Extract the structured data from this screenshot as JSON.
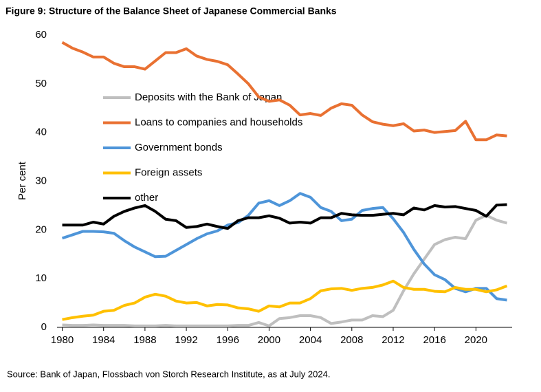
{
  "chart_data": {
    "type": "line",
    "title": "Figure 9: Structure of the Balance Sheet of Japanese Commercial Banks",
    "ylabel": "Per cent",
    "source": "Source: Bank of Japan, Flossbach von Storch Research Institute, as at July 2024.",
    "x": [
      1980,
      1981,
      1982,
      1983,
      1984,
      1985,
      1986,
      1987,
      1988,
      1989,
      1990,
      1991,
      1992,
      1993,
      1994,
      1995,
      1996,
      1997,
      1998,
      1999,
      2000,
      2001,
      2002,
      2003,
      2004,
      2005,
      2006,
      2007,
      2008,
      2009,
      2010,
      2011,
      2012,
      2013,
      2014,
      2015,
      2016,
      2017,
      2018,
      2019,
      2020,
      2021,
      2022,
      2023
    ],
    "xlim": [
      1979.5,
      2023.5
    ],
    "xticks": [
      1980,
      1984,
      1988,
      1992,
      1996,
      2000,
      2004,
      2008,
      2012,
      2016,
      2020
    ],
    "ylim": [
      0,
      60
    ],
    "yticks": [
      0,
      10,
      20,
      30,
      40,
      50,
      60
    ],
    "series": [
      {
        "name": "Deposits with the Bank of Japan",
        "color": "#bfbfbf",
        "values": [
          0.5,
          0.4,
          0.4,
          0.5,
          0.4,
          0.4,
          0.4,
          0.3,
          0.3,
          0.3,
          0.4,
          0.3,
          0.3,
          0.3,
          0.3,
          0.3,
          0.3,
          0.4,
          0.4,
          1.0,
          0.3,
          1.8,
          2.0,
          2.4,
          2.4,
          2.0,
          0.8,
          1.1,
          1.5,
          1.5,
          2.4,
          2.2,
          3.5,
          7.5,
          11,
          14,
          17,
          18,
          18.5,
          18.2,
          22,
          23,
          22,
          21.4
        ]
      },
      {
        "name": "Loans to companies and households",
        "color": "#e97132",
        "values": [
          58.5,
          57.3,
          56.5,
          55.5,
          55.5,
          54.2,
          53.5,
          53.5,
          53,
          54.7,
          56.4,
          56.4,
          57.2,
          55.7,
          55,
          54.6,
          53.9,
          52,
          50,
          47.3,
          46.4,
          46.7,
          45.6,
          43.6,
          43.9,
          43.5,
          45,
          45.9,
          45.6,
          43.6,
          42.2,
          41.7,
          41.4,
          41.8,
          40.3,
          40.5,
          40,
          40.2,
          40.4,
          42.3,
          38.5,
          38.5,
          39.5,
          39.3
        ]
      },
      {
        "name": "Government bonds",
        "color": "#4e95d9",
        "values": [
          18.3,
          19,
          19.7,
          19.7,
          19.6,
          19.3,
          17.8,
          16.5,
          15.5,
          14.5,
          14.6,
          15.8,
          17,
          18.2,
          19.2,
          19.8,
          21,
          21.5,
          23,
          25.5,
          26,
          25,
          26,
          27.5,
          26.7,
          24.6,
          23.8,
          21.9,
          22.2,
          24,
          24.4,
          24.6,
          22.3,
          19.5,
          16,
          13,
          10.8,
          9.8,
          8,
          7.3,
          8,
          8,
          5.9,
          5.6
        ]
      },
      {
        "name": "Foreign assets",
        "color": "#ffc000",
        "values": [
          1.6,
          2,
          2.3,
          2.5,
          3.3,
          3.5,
          4.5,
          5,
          6.2,
          6.8,
          6.4,
          5.4,
          5,
          5.1,
          4.4,
          4.7,
          4.6,
          4,
          3.8,
          3.3,
          4.4,
          4.2,
          5,
          5,
          5.9,
          7.5,
          7.9,
          8,
          7.6,
          8,
          8.2,
          8.7,
          9.5,
          8.2,
          7.8,
          7.8,
          7.4,
          7.3,
          8.2,
          7.8,
          7.8,
          7.3,
          7.7,
          8.5
        ]
      },
      {
        "name": "other",
        "color": "#000000",
        "values": [
          21,
          21,
          21,
          21.6,
          21.2,
          22.8,
          23.8,
          24.5,
          25,
          23.8,
          22.2,
          21.9,
          20.5,
          20.7,
          21.2,
          20.7,
          20.3,
          21.9,
          22.5,
          22.5,
          22.9,
          22.4,
          21.4,
          21.6,
          21.4,
          22.5,
          22.5,
          23.4,
          23.1,
          23,
          23,
          23.2,
          23.4,
          23.1,
          24.5,
          24.1,
          25,
          24.7,
          24.8,
          24.4,
          24,
          22.8,
          25.1,
          25.2
        ]
      }
    ]
  }
}
